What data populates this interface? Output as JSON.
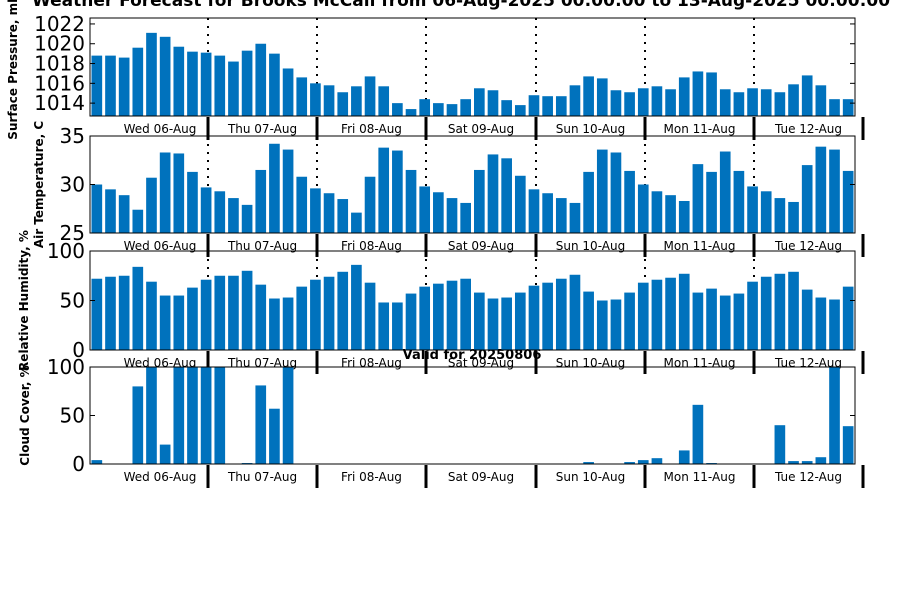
{
  "title": "Weather Forecast for Brooks McCall from 06-Aug-2025 00:00:00 to 13-Aug-2025 00:00:00",
  "subtitle": "Valid for 20250806",
  "colors": {
    "bar": "#0072bd",
    "axis": "#000000",
    "background": "#ffffff"
  },
  "chart_data": [
    {
      "type": "bar",
      "ylabel": "Surface Pressure, mb",
      "ylim": [
        1012.7,
        1022.6
      ],
      "yticks": [
        1014,
        1016,
        1018,
        1020,
        1022
      ],
      "day_labels": [
        "Wed 06-Aug",
        "Thu 07-Aug",
        "Fri 08-Aug",
        "Sat 09-Aug",
        "Sun 10-Aug",
        "Mon 11-Aug",
        "Tue 12-Aug"
      ],
      "day_separators": true,
      "values": [
        1018.8,
        1018.8,
        1018.6,
        1019.6,
        1021.1,
        1020.7,
        1019.7,
        1019.2,
        1019.1,
        1018.8,
        1018.2,
        1019.3,
        1020.0,
        1019.0,
        1017.5,
        1016.6,
        1016.0,
        1015.8,
        1015.1,
        1015.7,
        1016.7,
        1015.7,
        1014.0,
        1013.4,
        1014.4,
        1014.0,
        1013.9,
        1014.4,
        1015.5,
        1015.3,
        1014.3,
        1013.8,
        1014.8,
        1014.7,
        1014.7,
        1015.8,
        1016.7,
        1016.5,
        1015.3,
        1015.1,
        1015.5,
        1015.7,
        1015.4,
        1016.6,
        1017.2,
        1017.1,
        1015.4,
        1015.1,
        1015.5,
        1015.4,
        1015.1,
        1015.9,
        1016.8,
        1015.8,
        1014.4,
        1014.4
      ]
    },
    {
      "type": "bar",
      "ylabel": "Air Temperature, C",
      "ylim": [
        25,
        35
      ],
      "yticks": [
        25,
        30,
        35
      ],
      "day_labels": [
        "Wed 06-Aug",
        "Thu 07-Aug",
        "Fri 08-Aug",
        "Sat 09-Aug",
        "Sun 10-Aug",
        "Mon 11-Aug",
        "Tue 12-Aug"
      ],
      "day_separators": true,
      "values": [
        30.0,
        29.5,
        28.9,
        27.4,
        30.7,
        33.3,
        33.2,
        31.3,
        29.7,
        29.3,
        28.6,
        27.9,
        31.5,
        34.2,
        33.6,
        30.8,
        29.6,
        29.1,
        28.5,
        27.1,
        30.8,
        33.8,
        33.5,
        31.5,
        29.8,
        29.2,
        28.6,
        28.1,
        31.5,
        33.1,
        32.7,
        30.9,
        29.5,
        29.1,
        28.6,
        28.1,
        31.3,
        33.6,
        33.3,
        31.4,
        30.0,
        29.3,
        28.9,
        28.3,
        32.1,
        31.3,
        33.4,
        31.4,
        29.8,
        29.3,
        28.6,
        28.2,
        32.0,
        33.9,
        33.6,
        31.4
      ]
    },
    {
      "type": "bar",
      "ylabel": "Relative Humidity, %",
      "ylim": [
        0,
        100
      ],
      "yticks": [
        0,
        50,
        100
      ],
      "day_labels": [
        "Wed 06-Aug",
        "Thu 07-Aug",
        "Fri 08-Aug",
        "Sat 09-Aug",
        "Sun 10-Aug",
        "Mon 11-Aug",
        "Tue 12-Aug"
      ],
      "day_separators": true,
      "values": [
        72,
        74,
        75,
        84,
        69,
        55,
        55,
        63,
        71,
        75,
        75,
        80,
        66,
        52,
        53,
        64,
        71,
        74,
        79,
        86,
        68,
        48,
        48,
        57,
        64,
        67,
        70,
        72,
        58,
        52,
        53,
        58,
        65,
        68,
        72,
        76,
        59,
        50,
        51,
        58,
        68,
        71,
        73,
        77,
        58,
        62,
        55,
        57,
        69,
        74,
        77,
        79,
        61,
        53,
        51,
        64
      ]
    },
    {
      "type": "bar",
      "ylabel": "Cloud Cover, %",
      "ylim": [
        0,
        100
      ],
      "yticks": [
        0,
        50,
        100
      ],
      "day_labels": [
        "Wed 06-Aug",
        "Thu 07-Aug",
        "Fri 08-Aug",
        "Sat 09-Aug",
        "Sun 10-Aug",
        "Mon 11-Aug",
        "Tue 12-Aug"
      ],
      "day_separators": false,
      "values": [
        4,
        0,
        0,
        80,
        100,
        20,
        100,
        100,
        100,
        100,
        0,
        1,
        81,
        57,
        100,
        0,
        0,
        0,
        0,
        0,
        0,
        0,
        0,
        0,
        0,
        0,
        0,
        0,
        0,
        0,
        0,
        0,
        0,
        0,
        0,
        0,
        2,
        0,
        0,
        2,
        4,
        6,
        0,
        14,
        61,
        1,
        0,
        0,
        0,
        0,
        40,
        3,
        3,
        7,
        100,
        39
      ]
    }
  ]
}
